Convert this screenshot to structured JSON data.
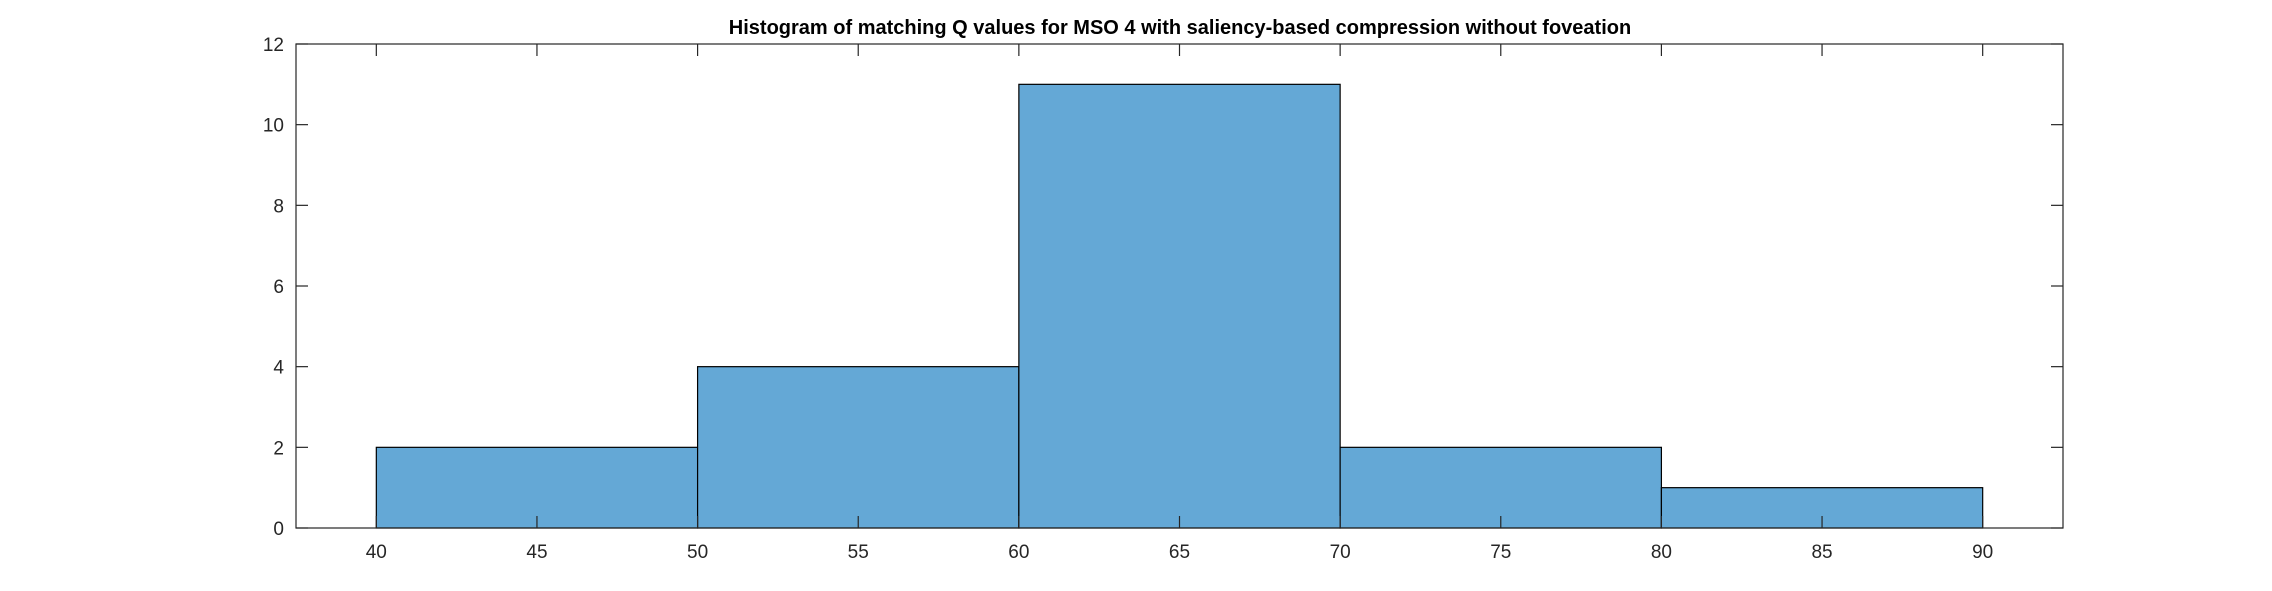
{
  "chart_data": {
    "type": "bar",
    "title": "Histogram of matching Q values for MSO 4 with saliency-based compression without foveation",
    "xlabel": "",
    "ylabel": "",
    "xlim": [
      37.5,
      92.5
    ],
    "ylim": [
      0,
      12
    ],
    "bin_edges": [
      40,
      50,
      60,
      70,
      80,
      90
    ],
    "values": [
      2,
      4,
      11,
      2,
      1
    ],
    "xticks": [
      40,
      45,
      50,
      55,
      60,
      65,
      70,
      75,
      80,
      85,
      90
    ],
    "yticks": [
      0,
      2,
      4,
      6,
      8,
      10,
      12
    ],
    "grid": false,
    "legend": "none",
    "bar_color": "#64a8d6",
    "edge_color": "#000000",
    "axis_color": "#262626"
  }
}
